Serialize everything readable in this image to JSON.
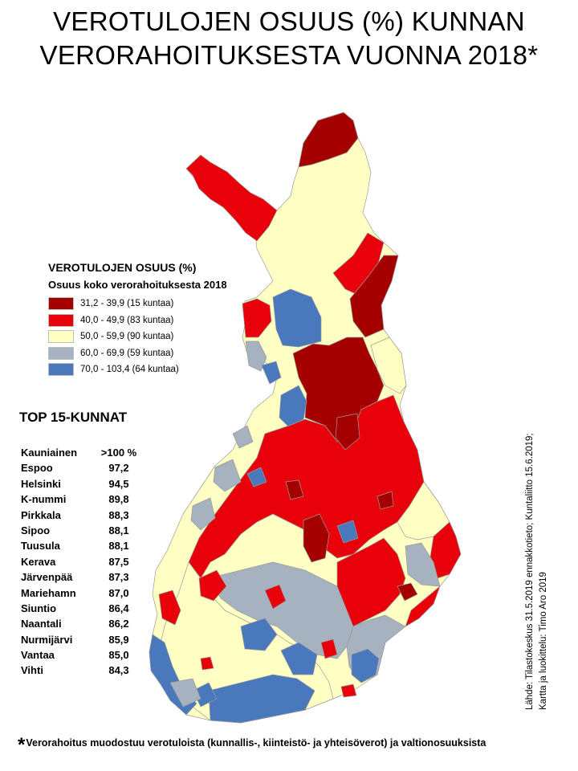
{
  "title": {
    "line1": "VEROTULOJEN OSUUS (%) KUNNAN",
    "line2": "VERORAHOITUKSESTA VUONNA 2018*"
  },
  "legend": {
    "title": "VEROTULOJEN OSUUS (%)",
    "subtitle": "Osuus koko verorahoituksesta 2018",
    "items": [
      {
        "label": "31,2 - 39,9 (15 kuntaa)",
        "color": "#a50000"
      },
      {
        "label": "40,0 - 49,9 (83 kuntaa)",
        "color": "#e8000a"
      },
      {
        "label": "50,0 - 59,9 (90 kuntaa)",
        "color": "#ffffc4"
      },
      {
        "label": "60,0 - 69,9 (59 kuntaa)",
        "color": "#a6b2bf"
      },
      {
        "label": "70,0 - 103,4 (64 kuntaa)",
        "color": "#4a78bd"
      }
    ]
  },
  "top": {
    "title": "TOP 15-KUNNAT",
    "rows": [
      {
        "name": "Kauniainen",
        "value": ">100 %"
      },
      {
        "name": "Espoo",
        "value": "97,2"
      },
      {
        "name": "Helsinki",
        "value": "94,5"
      },
      {
        "name": "K-nummi",
        "value": "89,8"
      },
      {
        "name": "Pirkkala",
        "value": "88,3"
      },
      {
        "name": "Sipoo",
        "value": "88,1"
      },
      {
        "name": "Tuusula",
        "value": "88,1"
      },
      {
        "name": "Kerava",
        "value": "87,5"
      },
      {
        "name": "Järvenpää",
        "value": "87,3"
      },
      {
        "name": "Mariehamn",
        "value": "87,0"
      },
      {
        "name": "Siuntio",
        "value": "86,4"
      },
      {
        "name": "Naantali",
        "value": "86,2"
      },
      {
        "name": "Nurmijärvi",
        "value": "85,9"
      },
      {
        "name": "Vantaa",
        "value": "85,0"
      },
      {
        "name": "Vihti",
        "value": "84,3"
      }
    ]
  },
  "source": {
    "line1": "Lähde: Tilastokeskus 31.5.2019 ennakkotieto; Kuntaliitto 15.6.2019;",
    "line2": "Kartta ja luokittelu: Timo Aro 2019"
  },
  "footnote": {
    "star": "*",
    "text": "Verorahoitus muodostuu verotuloista (kunnallis-, kiinteistö- ja yhteisöverot) ja valtionosuuksista"
  }
}
